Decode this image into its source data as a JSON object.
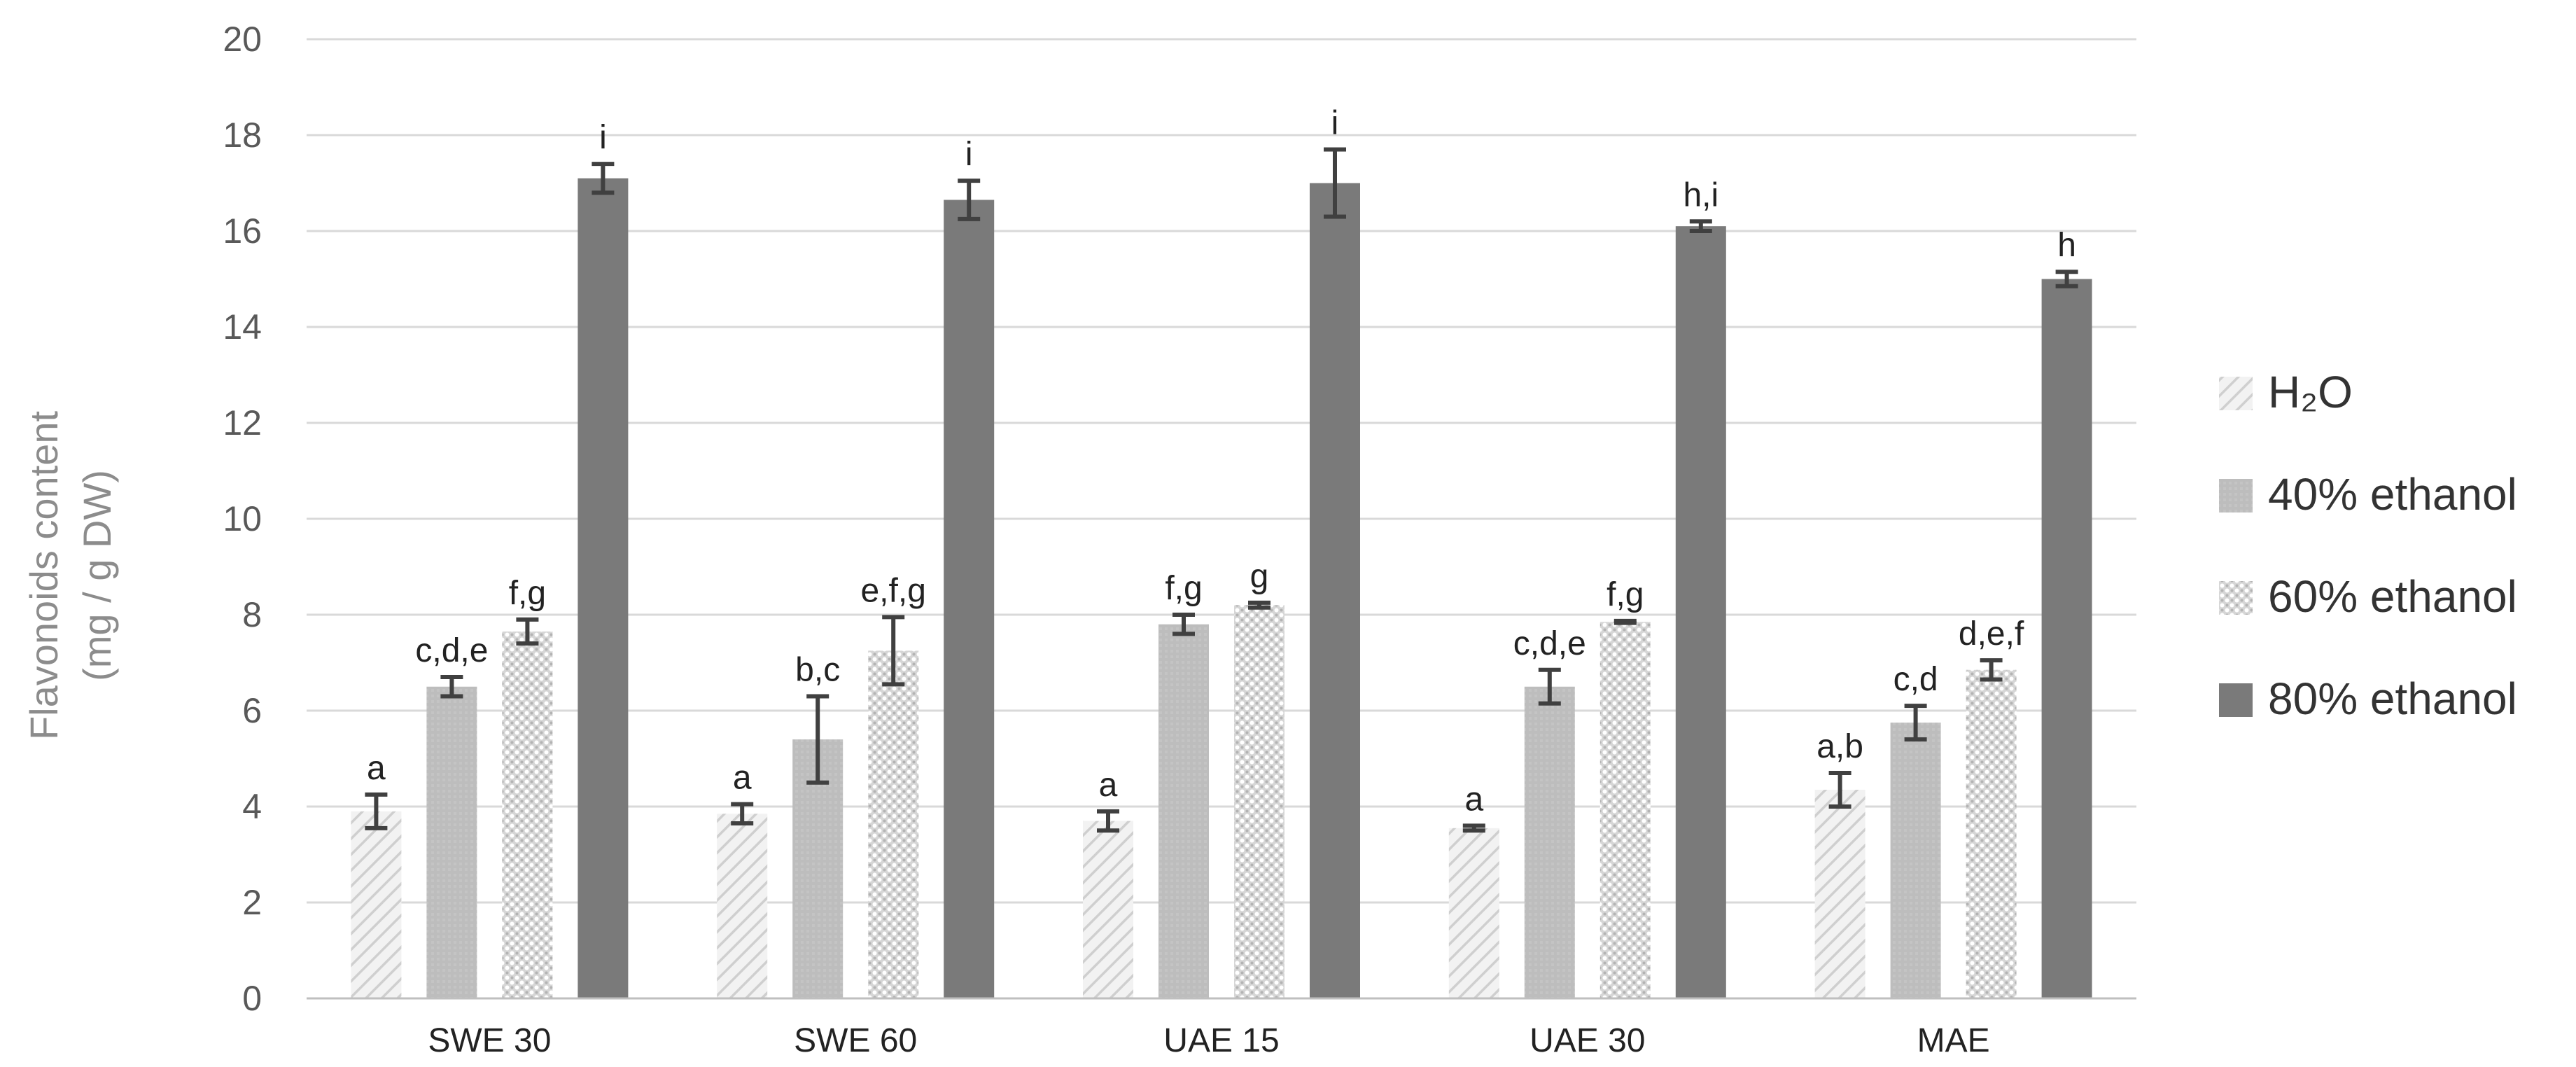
{
  "chart_data": {
    "type": "bar",
    "ylabel_line1": "Flavonoids content",
    "ylabel_line2": "(mg / g DW)",
    "xlabel": "",
    "ylim": [
      0,
      20
    ],
    "yticks": [
      "0",
      "2",
      "4",
      "6",
      "8",
      "10",
      "12",
      "14",
      "16",
      "18",
      "20"
    ],
    "grid": true,
    "legend_position": "right",
    "categories": [
      "SWE 30",
      "SWE 60",
      "UAE 15",
      "UAE 30",
      "MAE"
    ],
    "series": [
      {
        "name": "H₂O",
        "pattern": "diagonal-light",
        "color": "#e6e6e6",
        "values": [
          3.9,
          3.85,
          3.7,
          3.55,
          4.35
        ],
        "errors": [
          0.35,
          0.2,
          0.2,
          0.05,
          0.35
        ],
        "labels": [
          "a",
          "a",
          "a",
          "a",
          "a,b"
        ]
      },
      {
        "name": "40% ethanol",
        "pattern": "solid-light",
        "color": "#bdbdbd",
        "values": [
          6.5,
          5.4,
          7.8,
          6.5,
          5.75
        ],
        "errors": [
          0.2,
          0.9,
          0.2,
          0.35,
          0.35
        ],
        "labels": [
          "c,d,e",
          "b,c",
          "f,g",
          "c,d,e",
          "c,d"
        ]
      },
      {
        "name": "60% ethanol",
        "pattern": "dotted",
        "color": "#c8c8c8",
        "values": [
          7.65,
          7.25,
          8.2,
          7.85,
          6.85
        ],
        "errors": [
          0.25,
          0.7,
          0.05,
          0.02,
          0.2
        ],
        "labels": [
          "f,g",
          "e,f,g",
          "g",
          "f,g",
          "d,e,f"
        ]
      },
      {
        "name": "80% ethanol",
        "pattern": "solid-dark",
        "color": "#7a7a7a",
        "values": [
          17.1,
          16.65,
          17.0,
          16.1,
          15.0
        ],
        "errors": [
          0.3,
          0.4,
          0.7,
          0.1,
          0.15
        ],
        "labels": [
          "i",
          "i",
          "i",
          "h,i",
          "h"
        ]
      }
    ]
  }
}
